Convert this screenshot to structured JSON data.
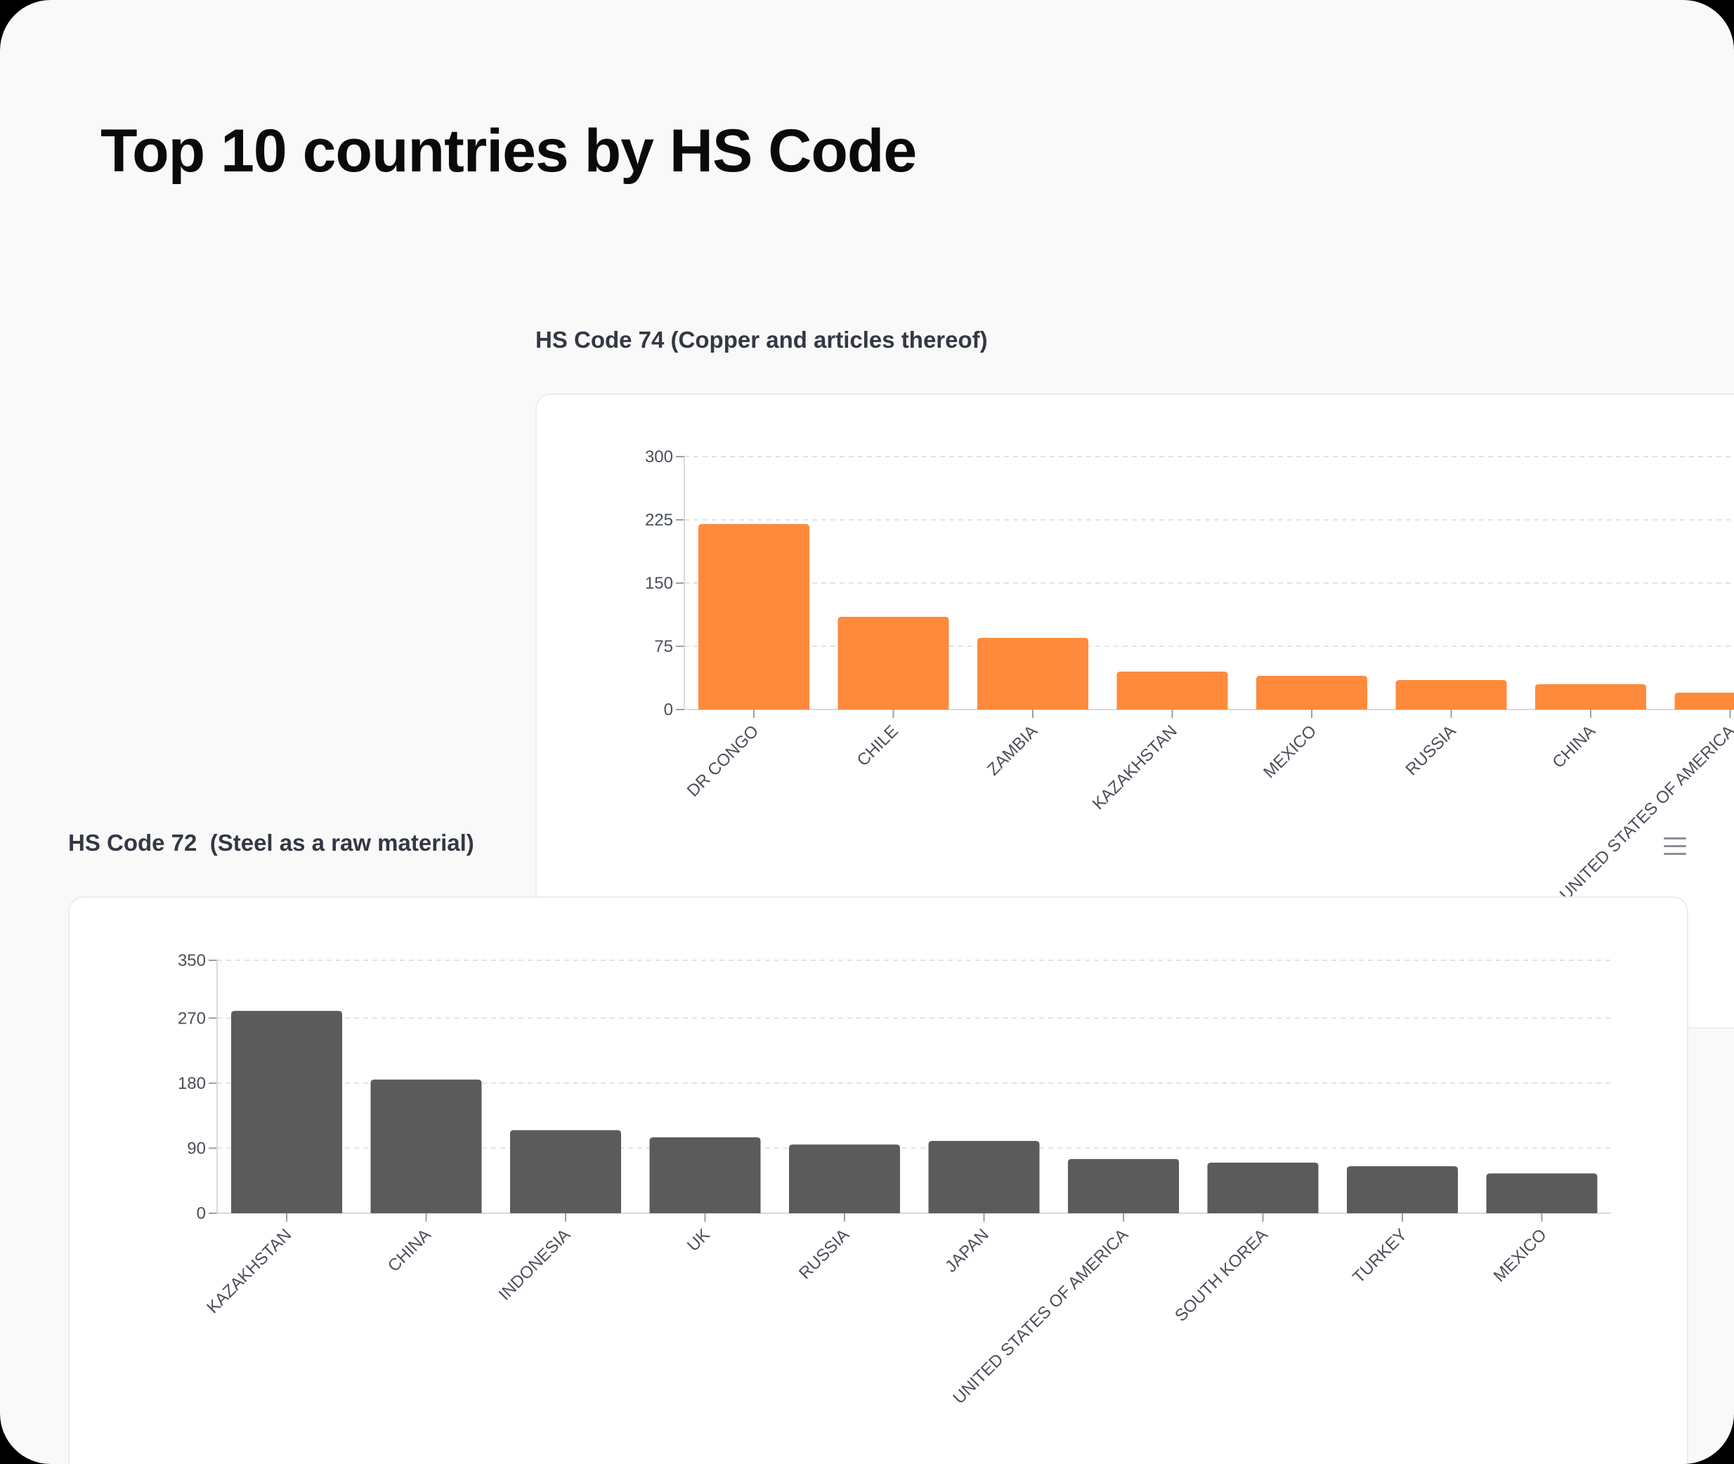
{
  "page": {
    "title": "Top 10 countries by HS Code"
  },
  "colors": {
    "copper": "#ff8a3c",
    "steel": "#5b5b5b",
    "axis_text": "#4a4f59",
    "grid": "#e3e3e3"
  },
  "icons": {
    "menu": "hamburger-menu-icon"
  },
  "chart_data": [
    {
      "id": "hs74",
      "type": "bar",
      "title": "HS Code 74 (Copper and articles thereof)",
      "xlabel": "",
      "ylabel": "",
      "ylim": [
        0,
        300
      ],
      "yticks": [
        0,
        75,
        150,
        225,
        300
      ],
      "grid": true,
      "color": "#ff8a3c",
      "categories": [
        "DR CONGO",
        "CHILE",
        "ZAMBIA",
        "KAZAKHSTAN",
        "MEXICO",
        "RUSSIA",
        "CHINA",
        "UNITED STATES OF AMERICA"
      ],
      "values": [
        220,
        110,
        85,
        45,
        40,
        35,
        30,
        20
      ]
    },
    {
      "id": "hs72",
      "type": "bar",
      "title": "HS Code 72  (Steel as a raw material)",
      "xlabel": "",
      "ylabel": "",
      "ylim": [
        0,
        350
      ],
      "yticks": [
        0,
        90,
        180,
        270,
        350
      ],
      "grid": true,
      "color": "#5b5b5b",
      "categories": [
        "KAZAKHSTAN",
        "CHINA",
        "INDONESIA",
        "UK",
        "RUSSIA",
        "JAPAN",
        "UNITED STATES OF AMERICA",
        "SOUTH KOREA",
        "TURKEY",
        "MEXICO"
      ],
      "values": [
        280,
        185,
        115,
        105,
        95,
        100,
        75,
        70,
        65,
        55
      ]
    }
  ]
}
